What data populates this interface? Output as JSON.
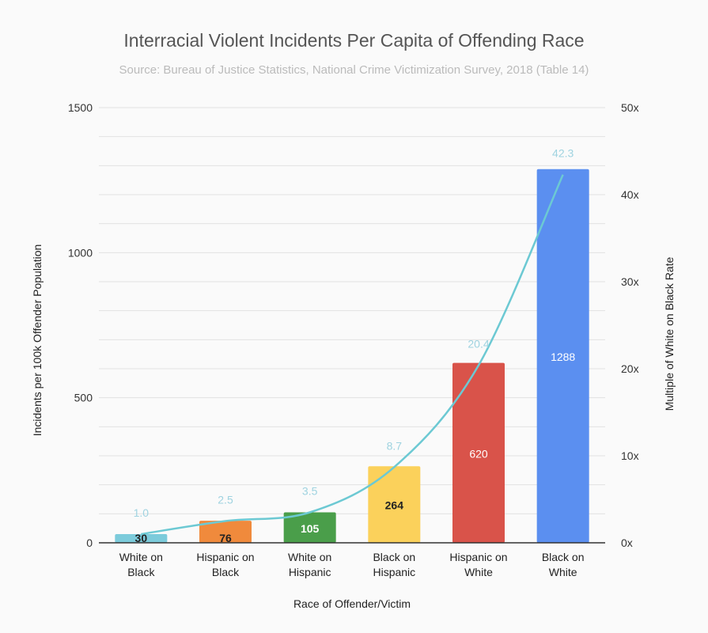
{
  "chart_data": {
    "type": "bar",
    "title": "Interracial Violent Incidents Per Capita of Offending Race",
    "subtitle": "Source: Bureau of Justice Statistics, National Crime Victimization Survey, 2018 (Table 14)",
    "xlabel": "Race of Offender/Victim",
    "ylabel": "Incidents per 100k Offender Population",
    "y2label": "Multiple of White on Black Rate",
    "categories": [
      [
        "White on",
        "Black"
      ],
      [
        "Hispanic on",
        "Black"
      ],
      [
        "White on",
        "Hispanic"
      ],
      [
        "Black on",
        "Hispanic"
      ],
      [
        "Hispanic on",
        "White"
      ],
      [
        "Black on",
        "White"
      ]
    ],
    "values": [
      30,
      76,
      105,
      264,
      620,
      1288
    ],
    "colors": [
      "#7ccbdb",
      "#f08a3c",
      "#4a9e4a",
      "#fbd15b",
      "#d9534a",
      "#5b8ff0"
    ],
    "value_label_colors": [
      "#222222",
      "#222222",
      "#ffffff",
      "#222222",
      "#ffffff",
      "#ffffff"
    ],
    "line": {
      "type": "line",
      "smooth": true,
      "axis": "right",
      "color": "#6cc9d3",
      "values": [
        1.0,
        2.5,
        3.5,
        8.7,
        20.4,
        42.3
      ],
      "labels": [
        "1.0",
        "2.5",
        "3.5",
        "8.7",
        "20.4",
        "42.3"
      ]
    },
    "ylim": [
      0,
      1500
    ],
    "yticks": [
      "0",
      "500",
      "1000",
      "1500"
    ],
    "y2lim": [
      0,
      50
    ],
    "y2ticks": [
      "0x",
      "10x",
      "20x",
      "30x",
      "40x",
      "50x"
    ],
    "grid": true
  }
}
